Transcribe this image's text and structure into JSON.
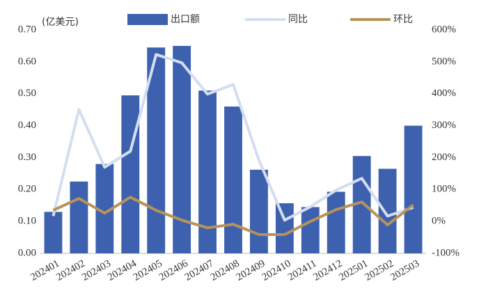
{
  "chart_data": {
    "type": "bar_line",
    "unit_label": "(亿美元)",
    "categories": [
      "202401",
      "202402",
      "202403",
      "202404",
      "202405",
      "202406",
      "202407",
      "202408",
      "202409",
      "202410",
      "202411",
      "202412",
      "202501",
      "202502",
      "202503"
    ],
    "series": [
      {
        "name": "出口额",
        "type": "bar",
        "axis": "y",
        "color": "#3d61ae",
        "values": [
          0.13,
          0.225,
          0.28,
          0.495,
          0.645,
          0.65,
          0.51,
          0.46,
          0.262,
          0.157,
          0.145,
          0.193,
          0.305,
          0.265,
          0.4
        ]
      },
      {
        "name": "同比",
        "type": "line",
        "axis": "y2",
        "color": "#d3def1",
        "values": [
          17,
          351,
          170,
          220,
          523,
          497,
          399,
          429,
          192,
          4,
          46,
          98,
          135,
          17,
          44
        ]
      },
      {
        "name": "环比",
        "type": "line",
        "axis": "y2",
        "color": "#b8925a",
        "values": [
          35,
          72,
          26,
          76,
          35,
          4,
          -20,
          -9,
          -41,
          -41,
          0,
          37,
          61,
          -11,
          52
        ]
      }
    ],
    "ylim": [
      0,
      0.7
    ],
    "yticks": [
      {
        "value": 0,
        "label": "0.00"
      },
      {
        "value": 0.1,
        "label": "0.10"
      },
      {
        "value": 0.2,
        "label": "0.20"
      },
      {
        "value": 0.3,
        "label": "0.30"
      },
      {
        "value": 0.4,
        "label": "0.40"
      },
      {
        "value": 0.5,
        "label": "0.50"
      },
      {
        "value": 0.6,
        "label": "0.60"
      },
      {
        "value": 0.7,
        "label": "0.70"
      }
    ],
    "y2lim": [
      -100,
      600
    ],
    "y2ticks": [
      {
        "value": -100,
        "label": "-100%"
      },
      {
        "value": 0,
        "label": "0%"
      },
      {
        "value": 100,
        "label": "100%"
      },
      {
        "value": 200,
        "label": "200%"
      },
      {
        "value": 300,
        "label": "300%"
      },
      {
        "value": 400,
        "label": "400%"
      },
      {
        "value": 500,
        "label": "500%"
      },
      {
        "value": 600,
        "label": "600%"
      }
    ],
    "legend": "top"
  }
}
